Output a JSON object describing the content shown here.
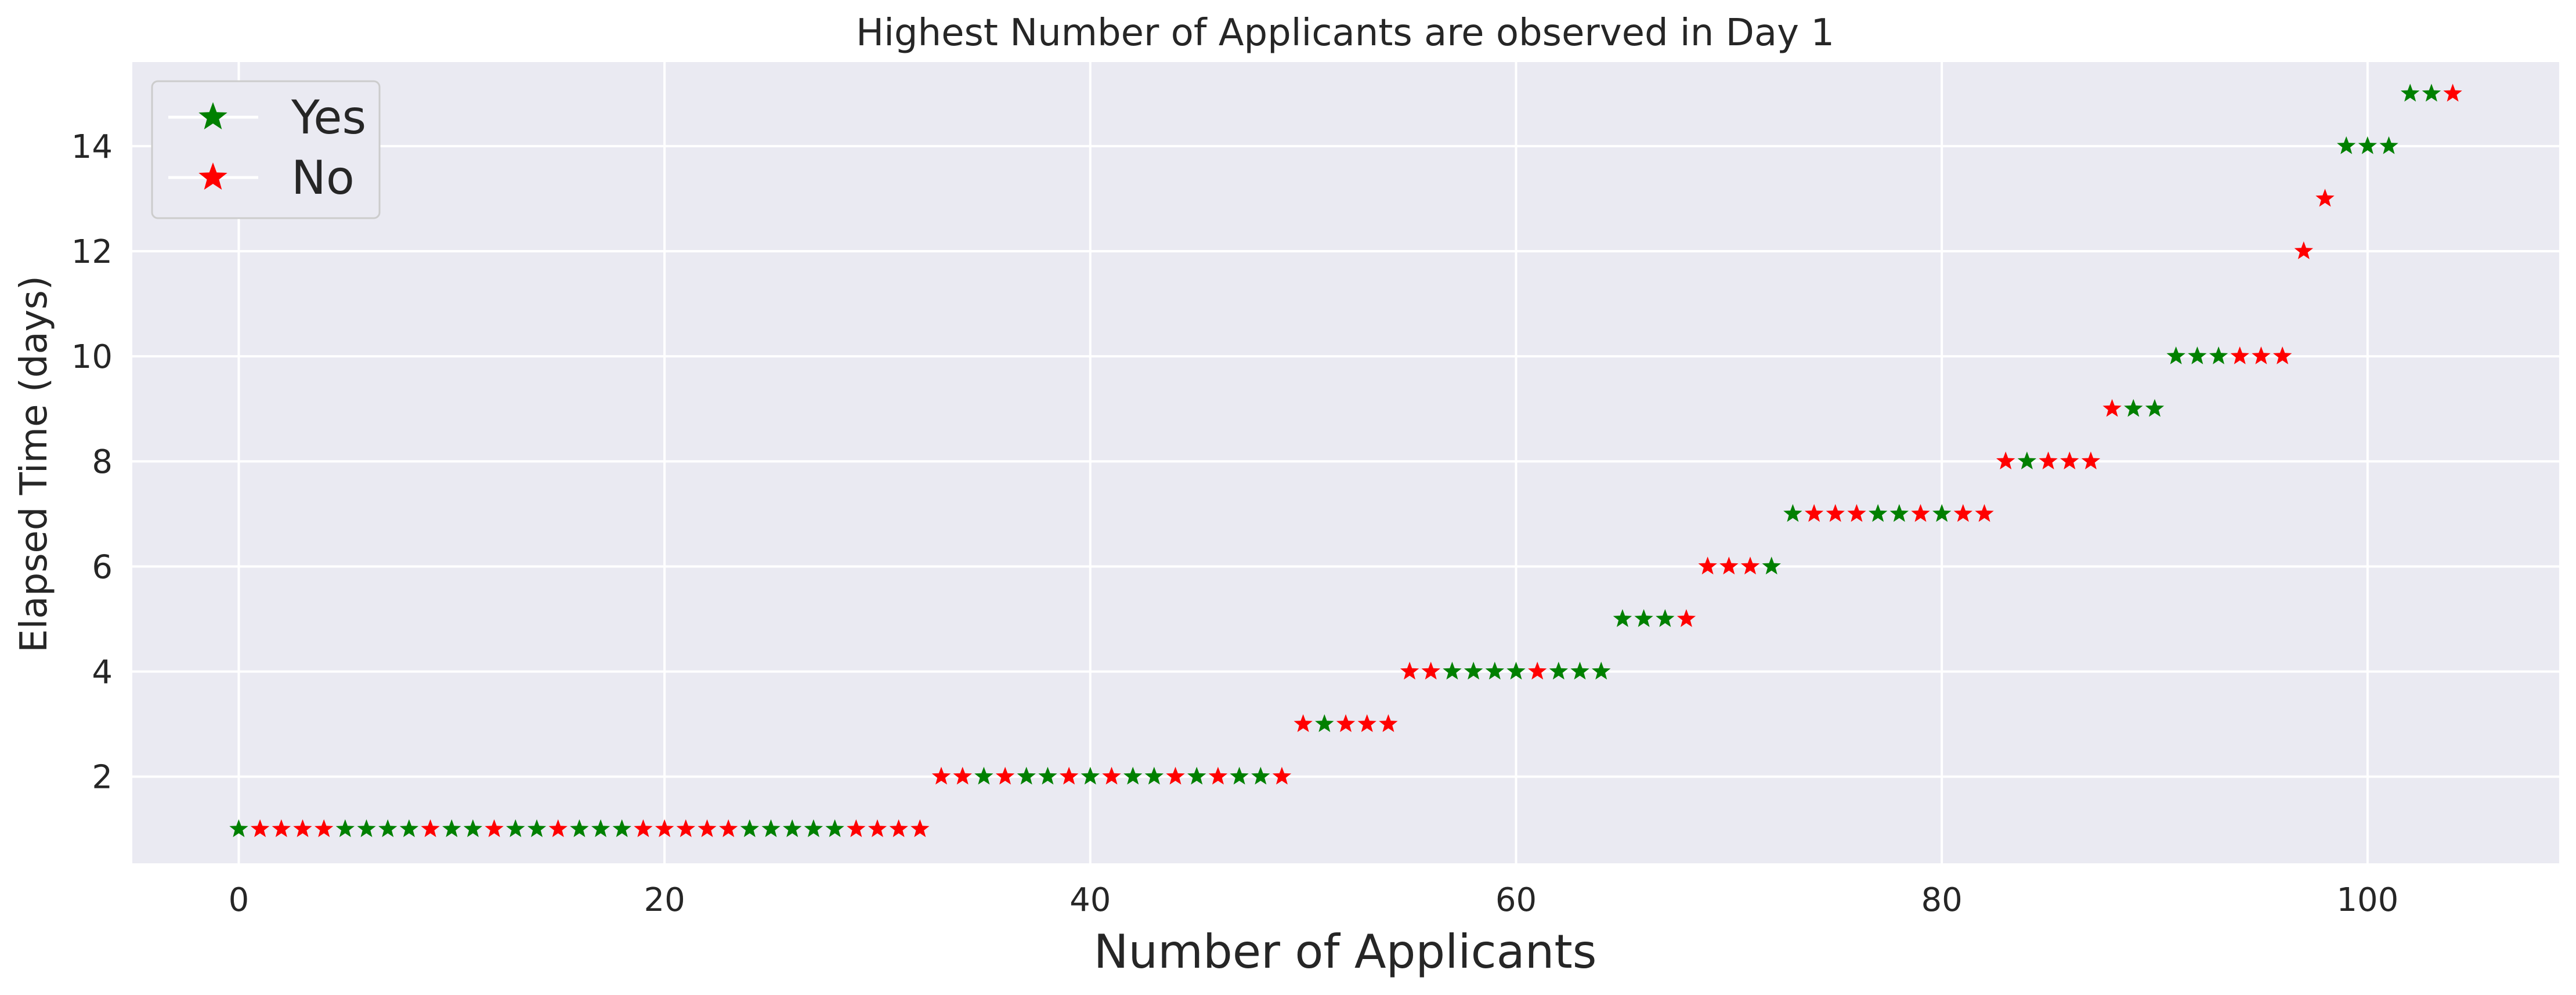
{
  "chart_data": {
    "type": "scatter",
    "title": "Highest Number of Applicants are observed in Day 1",
    "xlabel": "Number of Applicants",
    "ylabel": "Elapsed Time (days)",
    "xlim": [
      -5,
      109
    ],
    "ylim": [
      0.35,
      15.6
    ],
    "xticks": [
      0,
      20,
      40,
      60,
      80,
      100
    ],
    "yticks": [
      2,
      4,
      6,
      8,
      10,
      12,
      14
    ],
    "grid": true,
    "marker": "star",
    "legend_position": "top-left",
    "series": [
      {
        "name": "Yes",
        "color": "#008000",
        "points": [
          [
            0,
            1
          ],
          [
            5,
            1
          ],
          [
            6,
            1
          ],
          [
            7,
            1
          ],
          [
            8,
            1
          ],
          [
            10,
            1
          ],
          [
            11,
            1
          ],
          [
            13,
            1
          ],
          [
            14,
            1
          ],
          [
            16,
            1
          ],
          [
            17,
            1
          ],
          [
            18,
            1
          ],
          [
            24,
            1
          ],
          [
            25,
            1
          ],
          [
            26,
            1
          ],
          [
            27,
            1
          ],
          [
            28,
            1
          ],
          [
            35,
            2
          ],
          [
            37,
            2
          ],
          [
            38,
            2
          ],
          [
            40,
            2
          ],
          [
            42,
            2
          ],
          [
            43,
            2
          ],
          [
            45,
            2
          ],
          [
            47,
            2
          ],
          [
            48,
            2
          ],
          [
            51,
            3
          ],
          [
            57,
            4
          ],
          [
            58,
            4
          ],
          [
            59,
            4
          ],
          [
            60,
            4
          ],
          [
            62,
            4
          ],
          [
            63,
            4
          ],
          [
            64,
            4
          ],
          [
            65,
            5
          ],
          [
            66,
            5
          ],
          [
            67,
            5
          ],
          [
            72,
            6
          ],
          [
            73,
            7
          ],
          [
            77,
            7
          ],
          [
            78,
            7
          ],
          [
            80,
            7
          ],
          [
            84,
            8
          ],
          [
            89,
            9
          ],
          [
            90,
            9
          ],
          [
            91,
            10
          ],
          [
            92,
            10
          ],
          [
            93,
            10
          ],
          [
            99,
            14
          ],
          [
            100,
            14
          ],
          [
            101,
            14
          ],
          [
            102,
            15
          ],
          [
            103,
            15
          ]
        ]
      },
      {
        "name": "No",
        "color": "#ff0000",
        "points": [
          [
            1,
            1
          ],
          [
            2,
            1
          ],
          [
            3,
            1
          ],
          [
            4,
            1
          ],
          [
            9,
            1
          ],
          [
            12,
            1
          ],
          [
            15,
            1
          ],
          [
            19,
            1
          ],
          [
            20,
            1
          ],
          [
            21,
            1
          ],
          [
            22,
            1
          ],
          [
            23,
            1
          ],
          [
            29,
            1
          ],
          [
            30,
            1
          ],
          [
            31,
            1
          ],
          [
            32,
            1
          ],
          [
            33,
            2
          ],
          [
            34,
            2
          ],
          [
            36,
            2
          ],
          [
            39,
            2
          ],
          [
            41,
            2
          ],
          [
            44,
            2
          ],
          [
            46,
            2
          ],
          [
            49,
            2
          ],
          [
            50,
            3
          ],
          [
            52,
            3
          ],
          [
            53,
            3
          ],
          [
            54,
            3
          ],
          [
            55,
            4
          ],
          [
            56,
            4
          ],
          [
            61,
            4
          ],
          [
            68,
            5
          ],
          [
            69,
            6
          ],
          [
            70,
            6
          ],
          [
            71,
            6
          ],
          [
            74,
            7
          ],
          [
            75,
            7
          ],
          [
            76,
            7
          ],
          [
            79,
            7
          ],
          [
            81,
            7
          ],
          [
            82,
            7
          ],
          [
            83,
            8
          ],
          [
            85,
            8
          ],
          [
            86,
            8
          ],
          [
            87,
            8
          ],
          [
            88,
            9
          ],
          [
            94,
            10
          ],
          [
            95,
            10
          ],
          [
            96,
            10
          ],
          [
            97,
            12
          ],
          [
            98,
            13
          ],
          [
            104,
            15
          ]
        ]
      }
    ]
  }
}
